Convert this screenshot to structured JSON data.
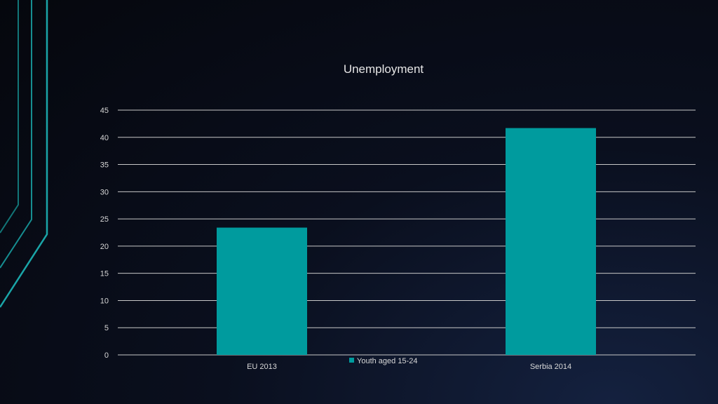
{
  "colors": {
    "accent": "#1aa5a8",
    "bar": "#009b9e",
    "grid": "#c8c8c8",
    "text": "#d8d8d8"
  },
  "chart_data": {
    "type": "bar",
    "title": "Unemployment",
    "categories": [
      "EU 2013",
      "Serbia 2014"
    ],
    "series": [
      {
        "name": "Youth aged 15-24",
        "values": [
          23.4,
          41.7
        ]
      }
    ],
    "yticks": [
      0,
      5,
      10,
      15,
      20,
      25,
      30,
      35,
      40,
      45
    ],
    "ylim": [
      0,
      45
    ],
    "grid": true,
    "legend": "bottom-center"
  }
}
